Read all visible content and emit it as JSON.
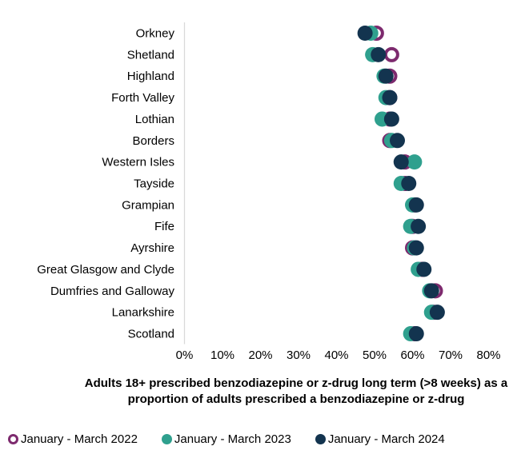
{
  "chart_data": {
    "type": "scatter",
    "subtype": "horizontal-dot-plot",
    "title": "Adults 18+ prescribed benzodiazepine or z-drug long term (>8 weeks) as a proportion of adults prescribed a benzodiazepine or z-drug",
    "xlabel": "",
    "ylabel": "",
    "grid": false,
    "legend_position": "bottom",
    "categories": [
      "Orkney",
      "Shetland",
      "Highland",
      "Forth Valley",
      "Lothian",
      "Borders",
      "Western Isles",
      "Tayside",
      "Grampian",
      "Fife",
      "Ayrshire",
      "Great Glasgow and Clyde",
      "Dumfries and Galloway",
      "Lanarkshire",
      "Scotland"
    ],
    "x_axis": {
      "min": 0,
      "max": 80,
      "tick_step": 10,
      "tick_labels": [
        "0%",
        "10%",
        "20%",
        "30%",
        "40%",
        "50%",
        "60%",
        "70%",
        "80%"
      ],
      "unit": "%"
    },
    "series": [
      {
        "name": "January - March 2022",
        "marker": "open-circle",
        "color": "#7d2a6e",
        "values": [
          50.5,
          54.5,
          54,
          54,
          54,
          54,
          58,
          58,
          60.5,
          60,
          60,
          62.5,
          66,
          65.5,
          60.5
        ]
      },
      {
        "name": "January - March 2023",
        "marker": "filled-circle",
        "color": "#2fa08e",
        "values": [
          49,
          49.5,
          52.5,
          53,
          52,
          54.5,
          60.5,
          57,
          60,
          59.5,
          60.5,
          61.5,
          64.5,
          65,
          59.5
        ]
      },
      {
        "name": "January - March 2024",
        "marker": "filled-circle",
        "color": "#13344f",
        "values": [
          47.5,
          51,
          53,
          54,
          54.5,
          56,
          57,
          59,
          61,
          61.5,
          61,
          63,
          65,
          66.5,
          61
        ]
      }
    ],
    "axis_line_color": "#d9d9d9"
  }
}
